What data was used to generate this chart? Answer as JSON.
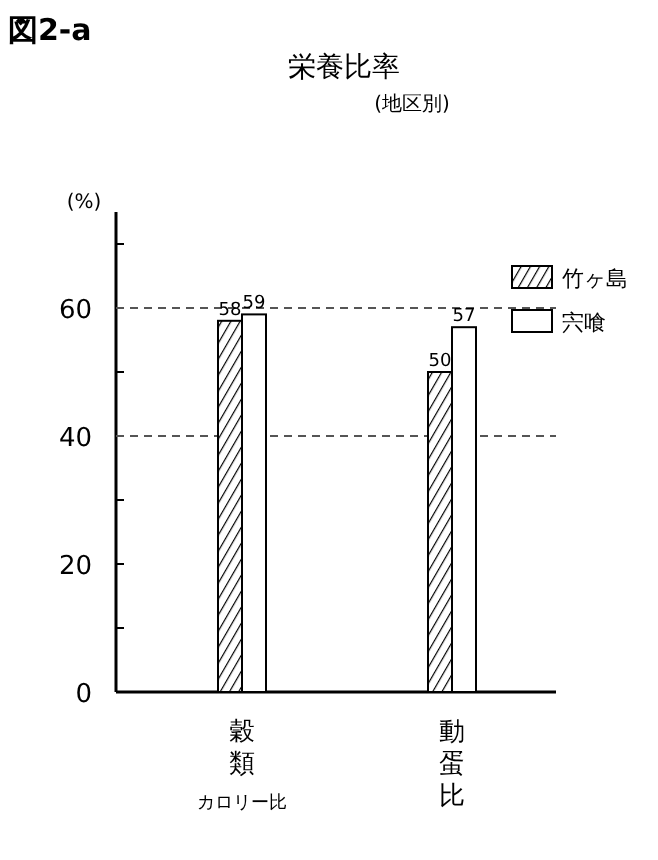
{
  "chart_data": {
    "type": "bar",
    "title": "栄養比率",
    "subtitle": "(地区別)",
    "annotations": [
      "図2-a"
    ],
    "ylabel": "(%)",
    "categories": [
      "穀類カロリー比",
      "動蛋比"
    ],
    "series": [
      {
        "name": "竹ヶ島",
        "color": "#000000",
        "values": [
          58,
          50
        ]
      },
      {
        "name": "宍喰",
        "color": "#ffffff",
        "values": [
          59,
          57
        ]
      }
    ],
    "ylim": [
      0,
      75
    ],
    "yticks": [
      0,
      {
        "value": 10,
        "label": null
      },
      20,
      {
        "value": 30,
        "label": null
      },
      40,
      {
        "value": 50,
        "label": null
      },
      60,
      {
        "value": 70,
        "label": null
      }
    ],
    "ref_lines": [
      {
        "axis": "y",
        "value": 60,
        "line_style": "dashed",
        "color": "#555555"
      },
      {
        "axis": "y",
        "value": 40,
        "line_style": "dashed",
        "color": "#555555"
      }
    ],
    "data_labels": true,
    "legend": "top right"
  }
}
